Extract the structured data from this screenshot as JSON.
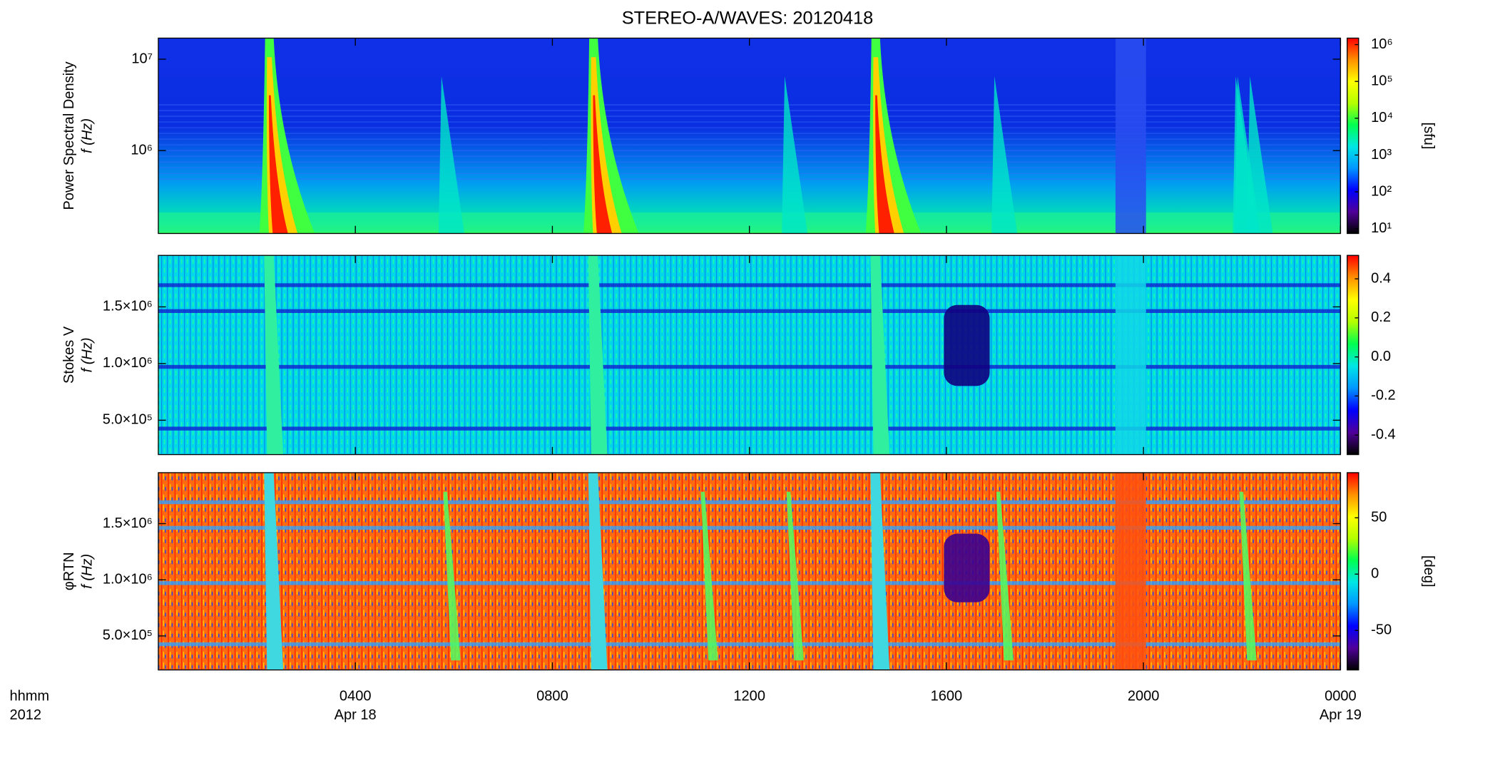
{
  "title": "STEREO-A/WAVES: 20120418",
  "colormap": [
    "#000000",
    "#50009a",
    "#0000ff",
    "#0096ff",
    "#00e6e6",
    "#00ff50",
    "#b4ff00",
    "#ffff00",
    "#ff9000",
    "#ff0000"
  ],
  "x_axis": {
    "label": [
      "hhmm",
      "2012"
    ],
    "xlim": [
      0,
      24
    ],
    "xticks": [
      {
        "value": 4,
        "label": "0400"
      },
      {
        "value": 8,
        "label": "0800"
      },
      {
        "value": 12,
        "label": "1200"
      },
      {
        "value": 16,
        "label": "1600"
      },
      {
        "value": 20,
        "label": "2000"
      },
      {
        "value": 24,
        "label": "0000"
      }
    ],
    "date_labels": [
      {
        "value": 4,
        "label": "Apr 18"
      },
      {
        "value": 24,
        "label": "Apr 19"
      }
    ]
  },
  "chart_data": [
    {
      "type": "heatmap",
      "ylabel": [
        "Power Spectral Density",
        "f (Hz)"
      ],
      "ylog": true,
      "ylim": [
        124000,
        17000000
      ],
      "yticks": [
        {
          "value": 1000000,
          "label": "10⁶"
        },
        {
          "value": 10000000,
          "label": "10⁷"
        }
      ],
      "clabel": "[sfu]",
      "clog": true,
      "clim": [
        7.4,
        1500000
      ],
      "cticks": [
        {
          "value": 10,
          "label": "10¹"
        },
        {
          "value": 100,
          "label": "10²"
        },
        {
          "value": 1000,
          "label": "10³"
        },
        {
          "value": 10000,
          "label": "10⁴"
        },
        {
          "value": 100000,
          "label": "10⁵"
        },
        {
          "value": 1000000,
          "label": "10⁶"
        }
      ]
    },
    {
      "type": "heatmap",
      "ylabel": [
        "Stokes V",
        "f (Hz)"
      ],
      "ylog": false,
      "ylim": [
        197000,
        1954000
      ],
      "yticks": [
        {
          "value": 500000,
          "label": "5.0×10⁵"
        },
        {
          "value": 1000000,
          "label": "1.0×10⁶"
        },
        {
          "value": 1500000,
          "label": "1.5×10⁶"
        }
      ],
      "clog": false,
      "clim": [
        -0.5,
        0.52
      ],
      "cticks": [
        -0.4,
        -0.2,
        {
          "value": 0,
          "label": "0.0"
        },
        0.2,
        0.4
      ]
    },
    {
      "type": "heatmap",
      "ylabel": [
        "φRTN",
        "f (Hz)"
      ],
      "ylog": false,
      "ylim": [
        197000,
        1954000
      ],
      "yticks": [
        {
          "value": 500000,
          "label": "5.0×10⁵"
        },
        {
          "value": 1000000,
          "label": "1.0×10⁶"
        },
        {
          "value": 1500000,
          "label": "1.5×10⁶"
        }
      ],
      "clabel": "[deg]",
      "clog": false,
      "clim": [
        -85,
        90
      ],
      "cticks": [
        -50,
        0,
        50
      ]
    }
  ]
}
